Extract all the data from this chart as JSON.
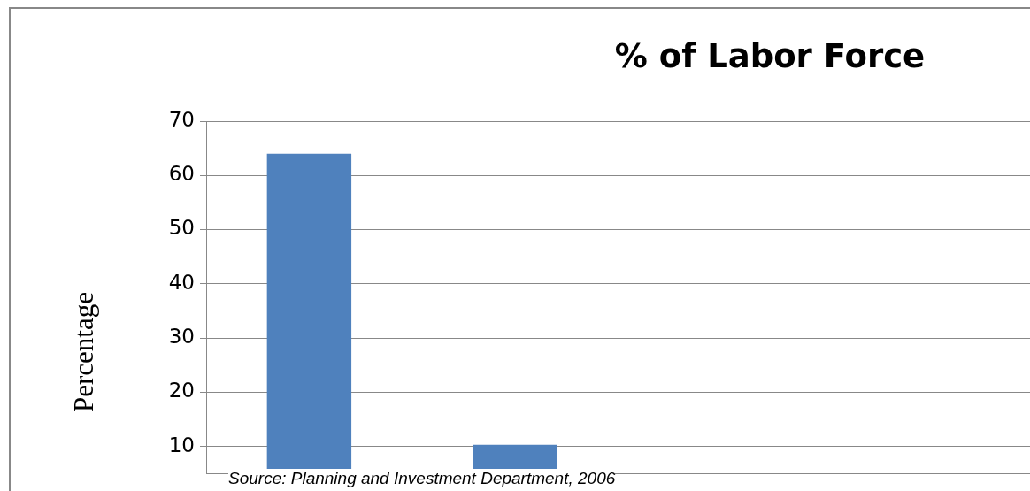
{
  "chart_data": {
    "type": "bar",
    "title": "% of Labor Force",
    "ylabel": "Percentage",
    "annotations": [
      "Source: Planning and Investment Department, 2006"
    ],
    "categories": [
      null,
      null,
      null,
      null
    ],
    "values": [
      64,
      10.3,
      null,
      null
    ],
    "color": "#4f81bd",
    "ylim": [
      5,
      70
    ],
    "yticks": [
      10,
      20,
      30,
      40,
      50,
      60,
      70
    ],
    "grid": "y",
    "tick_labels": "y"
  }
}
